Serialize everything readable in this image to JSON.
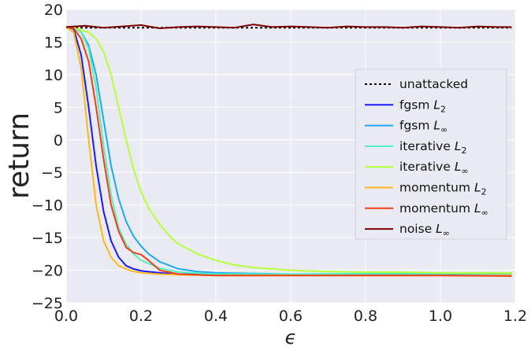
{
  "chart_data": {
    "type": "line",
    "xlabel": "ϵ",
    "ylabel": "return",
    "xlim": [
      0.0,
      1.2
    ],
    "ylim": [
      -25,
      20
    ],
    "xticks": [
      "0.0",
      "0.2",
      "0.4",
      "0.6",
      "0.8",
      "1.0",
      "1.2"
    ],
    "yticks": [
      "−25",
      "−20",
      "−15",
      "−10",
      "−5",
      "0",
      "5",
      "10",
      "15",
      "20"
    ],
    "grid": true,
    "legend_position": "right",
    "series": [
      {
        "name": "unattacked",
        "color": "#000000",
        "dashed": true,
        "x": [
          0.0,
          1.19
        ],
        "y": [
          17.2,
          17.2
        ]
      },
      {
        "name": "fgsm L2",
        "legend_prefix": "fgsm",
        "legend_math": "L",
        "legend_sub": "2",
        "color": "#1a1aff",
        "x": [
          0.0,
          0.02,
          0.04,
          0.06,
          0.08,
          0.1,
          0.12,
          0.14,
          0.16,
          0.18,
          0.2,
          0.25,
          0.3,
          0.4,
          0.5,
          0.6,
          0.8,
          1.0,
          1.19
        ],
        "y": [
          17.3,
          17.0,
          13.0,
          5.0,
          -4.0,
          -11.0,
          -15.5,
          -18.0,
          -19.3,
          -19.8,
          -20.1,
          -20.4,
          -20.6,
          -20.7,
          -20.7,
          -20.7,
          -20.6,
          -20.6,
          -20.5
        ]
      },
      {
        "name": "fgsm L∞",
        "legend_prefix": "fgsm",
        "legend_math": "L",
        "legend_sub": "∞",
        "color": "#1ea8f5",
        "x": [
          0.0,
          0.02,
          0.04,
          0.06,
          0.08,
          0.1,
          0.12,
          0.14,
          0.16,
          0.18,
          0.2,
          0.22,
          0.25,
          0.3,
          0.35,
          0.4,
          0.5,
          0.6,
          0.8,
          1.0,
          1.19
        ],
        "y": [
          17.3,
          17.2,
          16.5,
          14.5,
          10.0,
          3.0,
          -4.0,
          -9.0,
          -12.5,
          -14.8,
          -16.3,
          -17.5,
          -18.7,
          -19.8,
          -20.2,
          -20.4,
          -20.5,
          -20.6,
          -20.6,
          -20.6,
          -20.5
        ]
      },
      {
        "name": "iterative L2",
        "legend_prefix": "iterative",
        "legend_math": "L",
        "legend_sub": "2",
        "color": "#4ff2c0",
        "x": [
          0.0,
          0.02,
          0.04,
          0.06,
          0.08,
          0.1,
          0.12,
          0.14,
          0.16,
          0.18,
          0.2,
          0.25,
          0.3,
          0.4,
          0.5,
          0.6,
          0.8,
          1.0,
          1.19
        ],
        "y": [
          17.3,
          17.2,
          16.5,
          14.0,
          8.0,
          -1.0,
          -8.5,
          -13.5,
          -16.0,
          -17.5,
          -18.5,
          -19.7,
          -20.3,
          -20.6,
          -20.6,
          -20.6,
          -20.5,
          -20.5,
          -20.5
        ]
      },
      {
        "name": "iterative L∞",
        "legend_prefix": "iterative",
        "legend_math": "L",
        "legend_sub": "∞",
        "color": "#b6ff3a",
        "x": [
          0.0,
          0.02,
          0.04,
          0.06,
          0.08,
          0.1,
          0.12,
          0.14,
          0.16,
          0.18,
          0.2,
          0.22,
          0.25,
          0.28,
          0.3,
          0.35,
          0.4,
          0.45,
          0.5,
          0.6,
          0.7,
          0.8,
          0.9,
          1.0,
          1.1,
          1.19
        ],
        "y": [
          17.3,
          17.2,
          16.8,
          16.5,
          15.5,
          13.5,
          10.0,
          5.0,
          0.0,
          -4.5,
          -8.0,
          -10.5,
          -13.0,
          -15.0,
          -16.0,
          -17.5,
          -18.5,
          -19.2,
          -19.6,
          -20.0,
          -20.2,
          -20.3,
          -20.3,
          -20.4,
          -20.4,
          -20.4
        ]
      },
      {
        "name": "momentum L2",
        "legend_prefix": "momentum",
        "legend_math": "L",
        "legend_sub": "2",
        "color": "#ffb81a",
        "x": [
          0.0,
          0.02,
          0.04,
          0.06,
          0.08,
          0.1,
          0.12,
          0.14,
          0.16,
          0.18,
          0.2,
          0.25,
          0.3,
          0.4,
          0.5,
          0.6,
          0.8,
          1.0,
          1.19
        ],
        "y": [
          17.3,
          16.5,
          11.0,
          0.0,
          -10.0,
          -15.5,
          -18.0,
          -19.3,
          -19.8,
          -20.2,
          -20.4,
          -20.6,
          -20.7,
          -20.8,
          -20.8,
          -20.8,
          -20.8,
          -20.8,
          -20.8
        ]
      },
      {
        "name": "momentum L∞",
        "legend_prefix": "momentum",
        "legend_math": "L",
        "legend_sub": "∞",
        "color": "#f04018",
        "x": [
          0.0,
          0.02,
          0.04,
          0.06,
          0.08,
          0.1,
          0.12,
          0.14,
          0.16,
          0.18,
          0.2,
          0.22,
          0.25,
          0.3,
          0.4,
          0.5,
          0.6,
          0.8,
          1.0,
          1.19
        ],
        "y": [
          17.3,
          17.1,
          15.5,
          12.0,
          5.0,
          -3.0,
          -10.0,
          -14.0,
          -16.5,
          -17.3,
          -17.6,
          -18.5,
          -20.0,
          -20.6,
          -20.8,
          -20.8,
          -20.8,
          -20.8,
          -20.8,
          -20.9
        ]
      },
      {
        "name": "noise L∞",
        "legend_prefix": "noise",
        "legend_math": "L",
        "legend_sub": "∞",
        "color": "#7a0000",
        "x": [
          0.0,
          0.05,
          0.1,
          0.15,
          0.2,
          0.25,
          0.3,
          0.35,
          0.4,
          0.45,
          0.5,
          0.55,
          0.6,
          0.65,
          0.7,
          0.75,
          0.8,
          0.85,
          0.9,
          0.95,
          1.0,
          1.05,
          1.1,
          1.15,
          1.19
        ],
        "y": [
          17.3,
          17.5,
          17.2,
          17.4,
          17.6,
          17.1,
          17.3,
          17.4,
          17.3,
          17.2,
          17.7,
          17.3,
          17.4,
          17.3,
          17.2,
          17.4,
          17.3,
          17.3,
          17.2,
          17.4,
          17.3,
          17.2,
          17.4,
          17.3,
          17.3
        ]
      }
    ]
  }
}
